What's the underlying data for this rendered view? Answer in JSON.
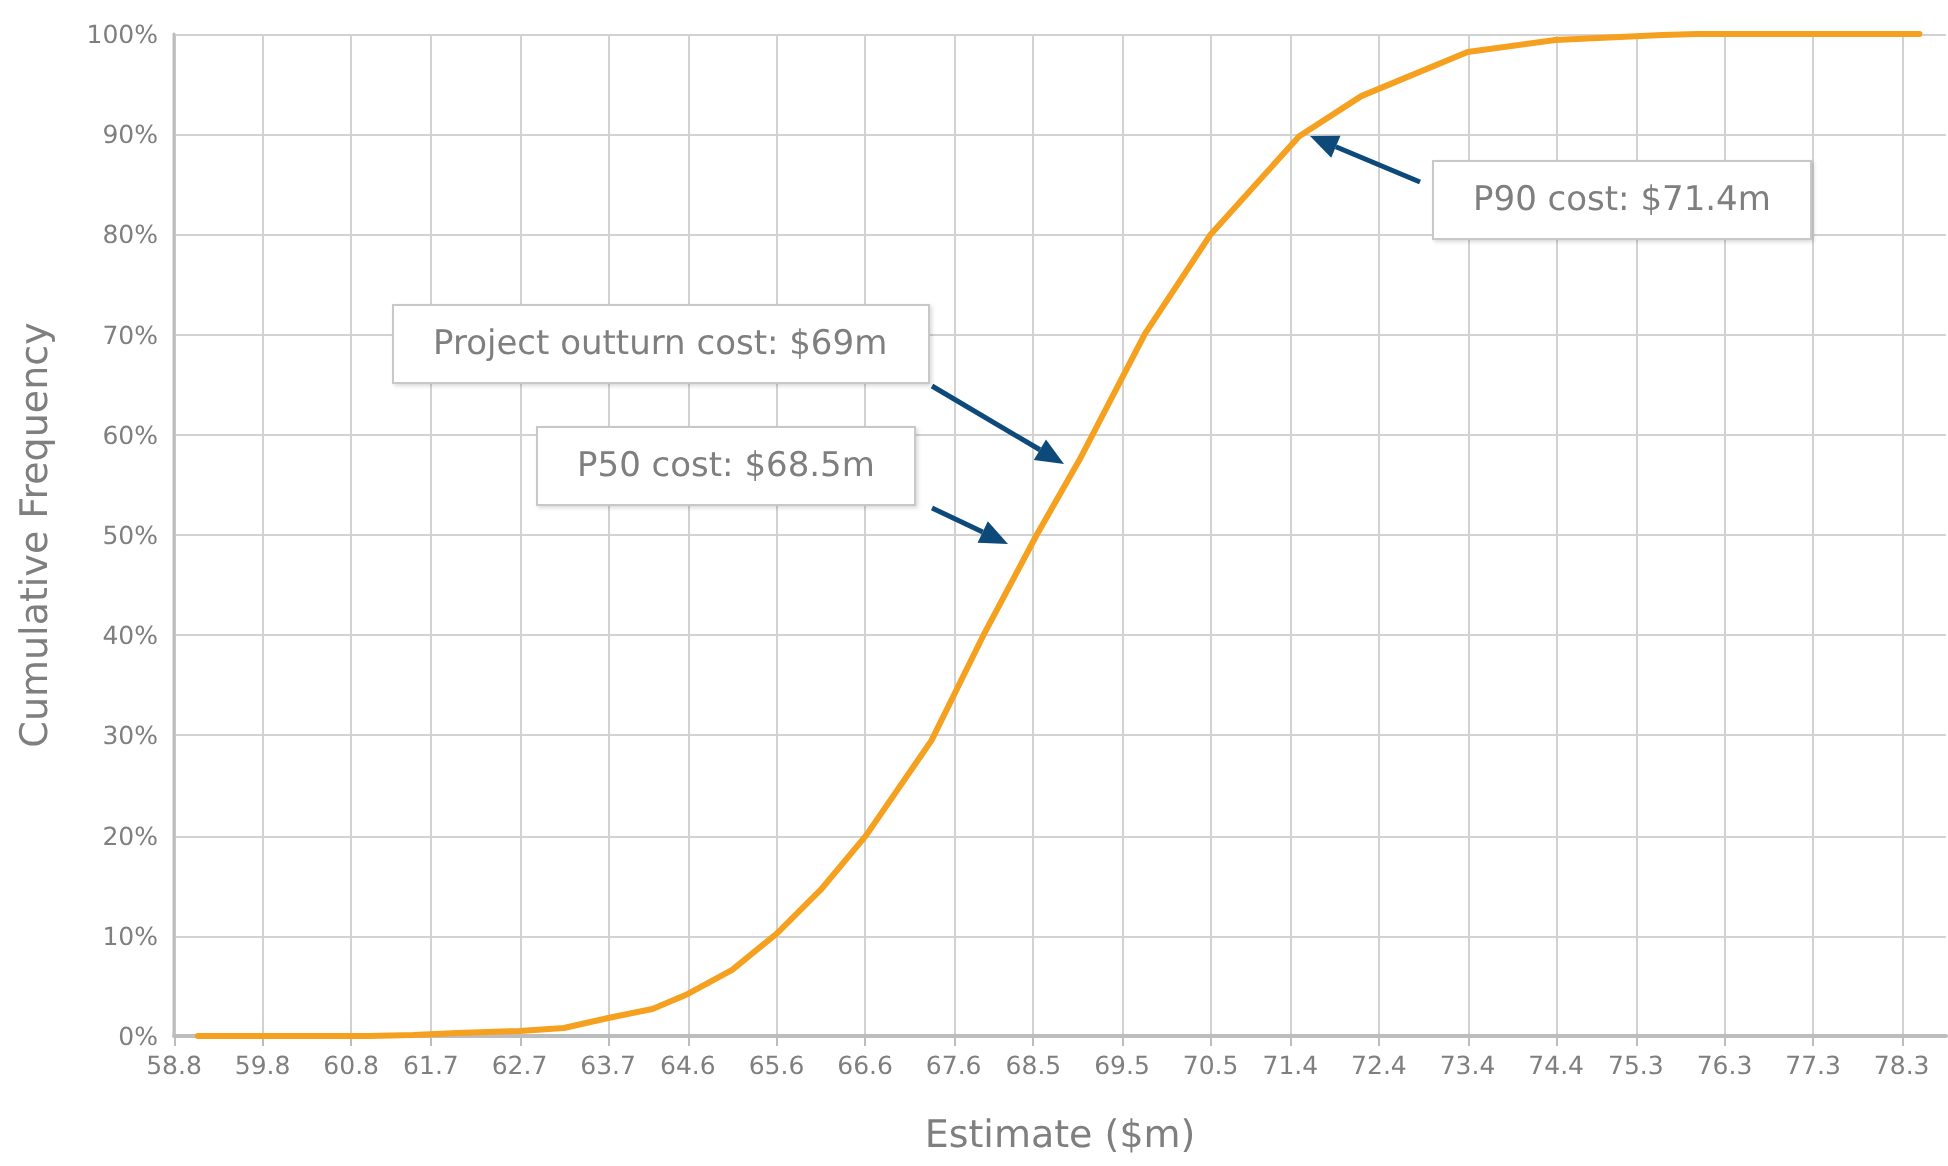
{
  "chart_data": {
    "type": "line",
    "xlabel": "Estimate ($m)",
    "ylabel": "Cumulative Frequency",
    "x": [
      59.07,
      60.0,
      61.0,
      61.5,
      62.0,
      62.7,
      63.2,
      63.7,
      64.2,
      64.6,
      65.1,
      65.6,
      66.1,
      66.61,
      67.35,
      67.93,
      68.53,
      69.02,
      69.76,
      70.5,
      71.5,
      72.2,
      73.4,
      74.39,
      75.6,
      76.0,
      77.0,
      78.5
    ],
    "series": [
      {
        "color": "#f5a01e",
        "values": [
          0,
          0,
          0,
          0.1,
          0.3,
          0.5,
          0.8,
          1.8,
          2.7,
          4.2,
          6.6,
          10.2,
          14.6,
          20.0,
          29.5,
          39.9,
          49.9,
          57.5,
          70.1,
          80.0,
          89.8,
          93.8,
          98.2,
          99.4,
          99.9,
          100,
          100,
          100
        ]
      }
    ],
    "xlim": [
      58.8,
      78.8
    ],
    "xticks": [
      58.8,
      59.8,
      60.8,
      61.7,
      62.7,
      63.7,
      64.6,
      65.6,
      66.6,
      67.6,
      68.5,
      69.5,
      70.5,
      71.4,
      72.4,
      73.4,
      74.4,
      75.3,
      76.3,
      77.3,
      78.3
    ],
    "ylim": [
      0,
      100
    ],
    "yticks": [
      {
        "value": 0,
        "label": "0%"
      },
      {
        "value": 10,
        "label": "10%"
      },
      {
        "value": 20,
        "label": "20%"
      },
      {
        "value": 30,
        "label": "30%"
      },
      {
        "value": 40,
        "label": "40%"
      },
      {
        "value": 50,
        "label": "50%"
      },
      {
        "value": 60,
        "label": "60%"
      },
      {
        "value": 70,
        "label": "70%"
      },
      {
        "value": 80,
        "label": "80%"
      },
      {
        "value": 90,
        "label": "90%"
      },
      {
        "value": 100,
        "label": "100%"
      }
    ],
    "annotations": [
      "Project outturn cost: $69m",
      "P50 cost: $68.5m",
      "P90 cost: $71.4m"
    ],
    "grid": true,
    "marker": "none",
    "line_style": "solid"
  }
}
